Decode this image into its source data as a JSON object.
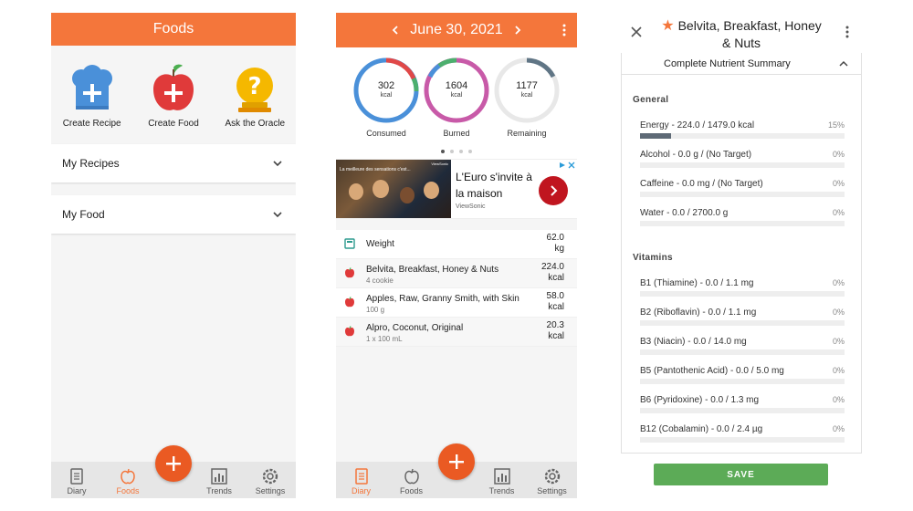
{
  "foods_screen": {
    "title": "Foods",
    "actions": [
      {
        "label": "Create Recipe",
        "icon": "chef-hat-plus-icon"
      },
      {
        "label": "Create Food",
        "icon": "apple-plus-icon"
      },
      {
        "label": "Ask the Oracle",
        "icon": "oracle-question-icon"
      }
    ],
    "sections": [
      {
        "label": "My Recipes"
      },
      {
        "label": "My Food"
      }
    ],
    "nav": [
      {
        "label": "Diary",
        "icon": "diary-icon",
        "active": false
      },
      {
        "label": "Foods",
        "icon": "apple-icon",
        "active": true
      },
      {
        "label": "Trends",
        "icon": "trends-icon",
        "active": false
      },
      {
        "label": "Settings",
        "icon": "gear-icon",
        "active": false
      }
    ]
  },
  "diary_screen": {
    "date": "June 30, 2021",
    "rings": [
      {
        "value": "302",
        "unit": "kcal",
        "caption": "Consumed"
      },
      {
        "value": "1604",
        "unit": "kcal",
        "caption": "Burned"
      },
      {
        "value": "1177",
        "unit": "kcal",
        "caption": "Remaining"
      }
    ],
    "ad": {
      "title": "L'Euro s'invite à la maison",
      "source": "ViewSonic",
      "image_text": "La meilleure des sensations c'est...",
      "image_corner_text": "ViewSonic"
    },
    "entries": [
      {
        "name": "Weight",
        "detail": "",
        "amount": "62.0",
        "unit": "kg",
        "icon": "scale-icon"
      },
      {
        "name": "Belvita, Breakfast, Honey & Nuts",
        "detail": "4 cookie",
        "amount": "224.0",
        "unit": "kcal",
        "icon": "apple-icon"
      },
      {
        "name": "Apples, Raw, Granny Smith, with Skin",
        "detail": "100 g",
        "amount": "58.0",
        "unit": "kcal",
        "icon": "apple-icon"
      },
      {
        "name": "Alpro, Coconut, Original",
        "detail": "1 x 100 mL",
        "amount": "20.3",
        "unit": "kcal",
        "icon": "apple-icon"
      }
    ],
    "nav": [
      {
        "label": "Diary",
        "icon": "diary-icon",
        "active": true
      },
      {
        "label": "Foods",
        "icon": "apple-icon",
        "active": false
      },
      {
        "label": "Trends",
        "icon": "trends-icon",
        "active": false
      },
      {
        "label": "Settings",
        "icon": "gear-icon",
        "active": false
      }
    ]
  },
  "nutrient_screen": {
    "title": "Belvita, Breakfast, Honey & Nuts",
    "panel_title": "Complete Nutrient Summary",
    "sections": [
      {
        "label": "General",
        "items": [
          {
            "label": "Energy - 224.0 / 1479.0 kcal",
            "percent": "15%",
            "fraction": 0.15
          },
          {
            "label": "Alcohol - 0.0 g / (No Target)",
            "percent": "0%",
            "fraction": 0
          },
          {
            "label": "Caffeine - 0.0 mg / (No Target)",
            "percent": "0%",
            "fraction": 0
          },
          {
            "label": "Water - 0.0 / 2700.0 g",
            "percent": "0%",
            "fraction": 0
          }
        ]
      },
      {
        "label": "Vitamins",
        "items": [
          {
            "label": "B1 (Thiamine) - 0.0 / 1.1 mg",
            "percent": "0%",
            "fraction": 0
          },
          {
            "label": "B2 (Riboflavin) - 0.0 / 1.1 mg",
            "percent": "0%",
            "fraction": 0
          },
          {
            "label": "B3 (Niacin) - 0.0 / 14.0 mg",
            "percent": "0%",
            "fraction": 0
          },
          {
            "label": "B5 (Pantothenic Acid) - 0.0 / 5.0 mg",
            "percent": "0%",
            "fraction": 0
          },
          {
            "label": "B6 (Pyridoxine) - 0.0 / 1.3 mg",
            "percent": "0%",
            "fraction": 0
          },
          {
            "label": "B12 (Cobalamin) - 0.0 / 2.4 µg",
            "percent": "0%",
            "fraction": 0
          }
        ]
      }
    ],
    "save_label": "SAVE"
  },
  "colors": {
    "accent": "#f4763b",
    "fab": "#ea5a23",
    "save": "#5cab57",
    "consumed_ring": "#4a90d9",
    "burned_ring": "#c85aa8",
    "remaining_ring": "#607585",
    "ring_red": "#e04848",
    "ring_green": "#4caf6e"
  }
}
